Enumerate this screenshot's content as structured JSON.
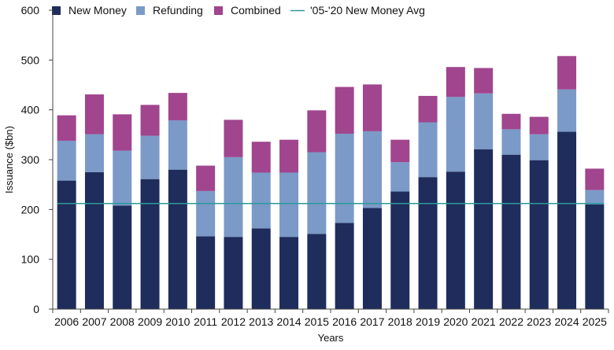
{
  "chart_data": {
    "type": "bar",
    "stacked": true,
    "xlabel": "Years",
    "ylabel": "Issuance ($bn)",
    "ylim": [
      0,
      600
    ],
    "yticks": [
      0,
      100,
      200,
      300,
      400,
      500,
      600
    ],
    "grid": false,
    "legend_position": "top",
    "categories": [
      "2006",
      "2007",
      "2008",
      "2009",
      "2010",
      "2011",
      "2012",
      "2013",
      "2014",
      "2015",
      "2016",
      "2017",
      "2018",
      "2019",
      "2020",
      "2021",
      "2022",
      "2023",
      "2024",
      "2025"
    ],
    "series": [
      {
        "name": "New Money",
        "color": "#1f2d5c",
        "values": [
          258,
          275,
          208,
          261,
          280,
          146,
          145,
          162,
          145,
          151,
          173,
          203,
          236,
          265,
          276,
          321,
          310,
          299,
          356,
          210
        ]
      },
      {
        "name": "Refunding",
        "color": "#7b9ac7",
        "values": [
          80,
          76,
          110,
          87,
          99,
          91,
          160,
          112,
          129,
          164,
          179,
          154,
          59,
          110,
          150,
          112,
          51,
          52,
          85,
          29
        ]
      },
      {
        "name": "Combined",
        "color": "#a0458e",
        "values": [
          51,
          80,
          73,
          62,
          55,
          51,
          75,
          62,
          66,
          84,
          94,
          94,
          45,
          53,
          60,
          51,
          31,
          35,
          67,
          43
        ]
      }
    ],
    "reference_line": {
      "name": "'05-'20 New Money Avg",
      "color": "#2a9a9a",
      "value": 212
    }
  }
}
